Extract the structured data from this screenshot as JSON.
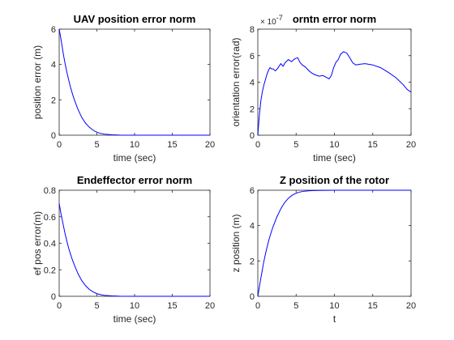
{
  "figure": {
    "background": "#ffffff",
    "line_color": "#0000ff",
    "axis_color": "#262626"
  },
  "chart_data": [
    {
      "type": "line",
      "title": "UAV position error norm",
      "xlabel": "time (sec)",
      "ylabel": "position error (m)",
      "xlim": [
        0,
        20
      ],
      "ylim": [
        0,
        6
      ],
      "xticks": [
        "0",
        "5",
        "10",
        "15",
        "20"
      ],
      "yticks": [
        "0",
        "2",
        "4",
        "6"
      ],
      "exponent": "",
      "grid": false,
      "series": [
        {
          "values": [
            [
              0,
              6
            ],
            [
              0.25,
              5.4
            ],
            [
              0.5,
              4.72
            ],
            [
              0.75,
              4.12
            ],
            [
              1,
              3.6
            ],
            [
              1.25,
              3.14
            ],
            [
              1.5,
              2.72
            ],
            [
              1.75,
              2.35
            ],
            [
              2,
              2.02
            ],
            [
              2.5,
              1.45
            ],
            [
              3,
              1.0
            ],
            [
              3.5,
              0.68
            ],
            [
              4,
              0.45
            ],
            [
              4.5,
              0.28
            ],
            [
              5,
              0.17
            ],
            [
              5.5,
              0.1
            ],
            [
              6,
              0.06
            ],
            [
              7,
              0.02
            ],
            [
              8,
              0.005
            ],
            [
              10,
              0.002
            ],
            [
              15,
              0.0
            ],
            [
              20,
              0.0
            ]
          ]
        }
      ]
    },
    {
      "type": "line",
      "title": "orntn error norm",
      "xlabel": "time (sec)",
      "ylabel": "orientation error(rad)",
      "xlim": [
        0,
        20
      ],
      "ylim": [
        0,
        8
      ],
      "xticks": [
        "0",
        "5",
        "10",
        "15",
        "20"
      ],
      "yticks": [
        "0",
        "2",
        "4",
        "6",
        "8"
      ],
      "exponent": "× 10",
      "exponent_power": "-7",
      "grid": false,
      "series": [
        {
          "values": [
            [
              0,
              0
            ],
            [
              0.2,
              1.5
            ],
            [
              0.4,
              2.6
            ],
            [
              0.6,
              3.3
            ],
            [
              0.8,
              3.8
            ],
            [
              1.0,
              4.2
            ],
            [
              1.2,
              4.6
            ],
            [
              1.4,
              4.9
            ],
            [
              1.6,
              5.1
            ],
            [
              1.8,
              5.0
            ],
            [
              2.0,
              5.0
            ],
            [
              2.3,
              4.85
            ],
            [
              2.6,
              5.05
            ],
            [
              3.0,
              5.4
            ],
            [
              3.3,
              5.2
            ],
            [
              3.6,
              5.5
            ],
            [
              4.0,
              5.7
            ],
            [
              4.4,
              5.55
            ],
            [
              4.8,
              5.75
            ],
            [
              5.2,
              5.85
            ],
            [
              5.5,
              5.5
            ],
            [
              5.8,
              5.3
            ],
            [
              6.2,
              5.15
            ],
            [
              6.6,
              4.9
            ],
            [
              7.0,
              4.7
            ],
            [
              7.5,
              4.55
            ],
            [
              8.0,
              4.45
            ],
            [
              8.5,
              4.5
            ],
            [
              9.0,
              4.35
            ],
            [
              9.3,
              4.25
            ],
            [
              9.6,
              4.5
            ],
            [
              9.9,
              5.1
            ],
            [
              10.2,
              5.5
            ],
            [
              10.5,
              5.7
            ],
            [
              10.8,
              6.1
            ],
            [
              11.2,
              6.3
            ],
            [
              11.6,
              6.2
            ],
            [
              12.0,
              5.85
            ],
            [
              12.4,
              5.45
            ],
            [
              12.8,
              5.3
            ],
            [
              13.3,
              5.35
            ],
            [
              14.0,
              5.4
            ],
            [
              15.0,
              5.3
            ],
            [
              16.0,
              5.1
            ],
            [
              17.0,
              4.75
            ],
            [
              18.0,
              4.35
            ],
            [
              19.0,
              3.8
            ],
            [
              19.5,
              3.45
            ],
            [
              20.0,
              3.25
            ]
          ]
        }
      ]
    },
    {
      "type": "line",
      "title": "Endeffector error norm",
      "xlabel": "time (sec)",
      "ylabel": "ef pos error(m)",
      "xlim": [
        0,
        20
      ],
      "ylim": [
        0,
        0.8
      ],
      "xticks": [
        "0",
        "5",
        "10",
        "15",
        "20"
      ],
      "yticks": [
        "0",
        "0.2",
        "0.4",
        "0.6",
        "0.8"
      ],
      "exponent": "",
      "grid": false,
      "series": [
        {
          "values": [
            [
              0,
              0.7
            ],
            [
              0.25,
              0.62
            ],
            [
              0.5,
              0.55
            ],
            [
              0.75,
              0.48
            ],
            [
              1,
              0.42
            ],
            [
              1.25,
              0.365
            ],
            [
              1.5,
              0.318
            ],
            [
              1.75,
              0.275
            ],
            [
              2,
              0.238
            ],
            [
              2.5,
              0.17
            ],
            [
              3,
              0.118
            ],
            [
              3.5,
              0.08
            ],
            [
              4,
              0.052
            ],
            [
              4.5,
              0.033
            ],
            [
              5,
              0.02
            ],
            [
              5.5,
              0.012
            ],
            [
              6,
              0.007
            ],
            [
              7,
              0.003
            ],
            [
              8,
              0.001
            ],
            [
              10,
              0.0
            ],
            [
              15,
              0.0
            ],
            [
              20,
              0.0
            ]
          ]
        }
      ]
    },
    {
      "type": "line",
      "title": "Z position of the rotor",
      "xlabel": "t",
      "ylabel": "z position (m)",
      "xlim": [
        0,
        20
      ],
      "ylim": [
        0,
        6
      ],
      "xticks": [
        "0",
        "5",
        "10",
        "15",
        "20"
      ],
      "yticks": [
        "0",
        "2",
        "4",
        "6"
      ],
      "exponent": "",
      "grid": false,
      "series": [
        {
          "values": [
            [
              0,
              0
            ],
            [
              0.25,
              0.65
            ],
            [
              0.5,
              1.28
            ],
            [
              0.75,
              1.88
            ],
            [
              1,
              2.4
            ],
            [
              1.25,
              2.86
            ],
            [
              1.5,
              3.27
            ],
            [
              1.75,
              3.63
            ],
            [
              2,
              3.95
            ],
            [
              2.5,
              4.5
            ],
            [
              3,
              4.95
            ],
            [
              3.5,
              5.3
            ],
            [
              4,
              5.55
            ],
            [
              4.5,
              5.72
            ],
            [
              5,
              5.83
            ],
            [
              5.5,
              5.9
            ],
            [
              6,
              5.94
            ],
            [
              7,
              5.98
            ],
            [
              8,
              5.99
            ],
            [
              10,
              6.0
            ],
            [
              15,
              6.0
            ],
            [
              20,
              6.0
            ]
          ]
        }
      ]
    }
  ]
}
